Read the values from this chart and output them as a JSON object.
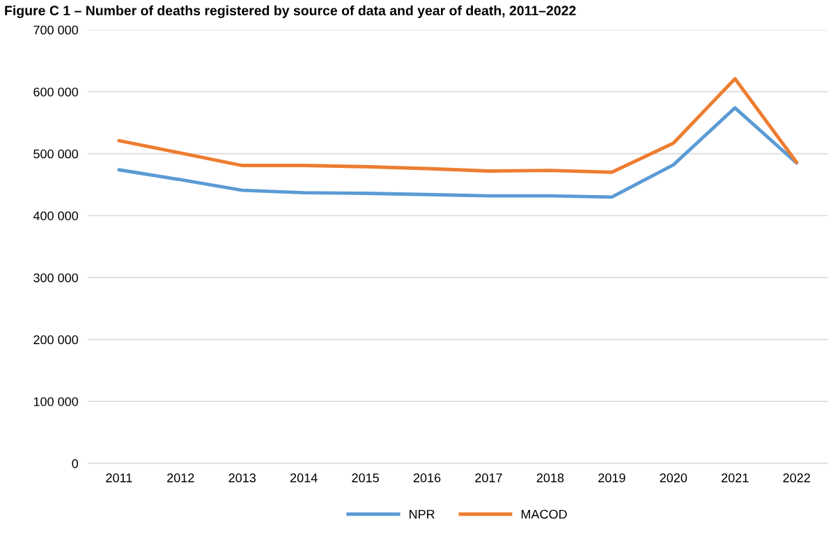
{
  "chart_data": {
    "type": "line",
    "title": "Figure C 1 – Number of deaths registered by source of data and year of death, 2011–2022",
    "categories": [
      "2011",
      "2012",
      "2013",
      "2014",
      "2015",
      "2016",
      "2017",
      "2018",
      "2019",
      "2020",
      "2021",
      "2022"
    ],
    "series": [
      {
        "name": "NPR",
        "color": "#5b9bd5",
        "values": [
          474000,
          458000,
          441000,
          437000,
          436000,
          434000,
          432000,
          432000,
          430000,
          482000,
          574000,
          485000
        ]
      },
      {
        "name": "MACOD",
        "color": "#ed7d31",
        "values": [
          521000,
          501000,
          481000,
          481000,
          479000,
          476000,
          472000,
          473000,
          470000,
          517000,
          621000,
          486000
        ]
      }
    ],
    "ylim": [
      0,
      700000
    ],
    "yticks": [
      {
        "value": 0,
        "label": "0"
      },
      {
        "value": 100000,
        "label": "100 000"
      },
      {
        "value": 200000,
        "label": "200 000"
      },
      {
        "value": 300000,
        "label": "300 000"
      },
      {
        "value": 400000,
        "label": "400 000"
      },
      {
        "value": 500000,
        "label": "500 000"
      },
      {
        "value": 600000,
        "label": "600 000"
      },
      {
        "value": 700000,
        "label": "700 000"
      }
    ],
    "grid": "y",
    "legend": "bottom",
    "marker": "none",
    "line_style": "solid"
  }
}
